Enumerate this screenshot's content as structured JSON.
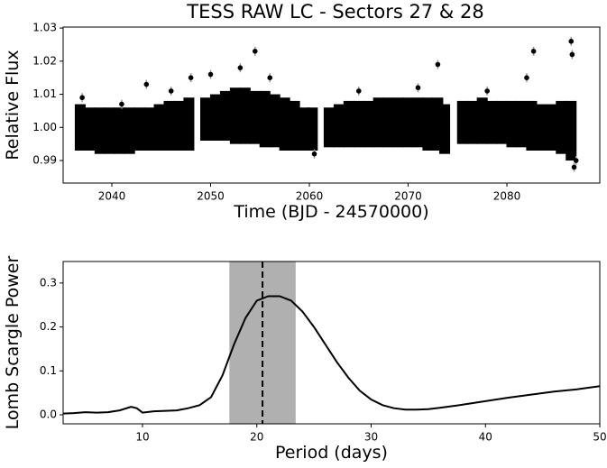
{
  "chart_data": [
    {
      "type": "scatter",
      "title": "TESS RAW LC - Sectors 27 & 28",
      "xlabel": "Time (BJD - 24570000)",
      "ylabel": "Relative Flux",
      "xlim": [
        2035.07,
        2089.4
      ],
      "ylim": [
        0.9832,
        1.0303
      ],
      "xticks": [
        2040,
        2050,
        2060,
        2070,
        2080
      ],
      "yticks": [
        0.99,
        {
          "value": 1,
          "label": "1.00"
        },
        1.01,
        1.02,
        1.03
      ],
      "color": "#000000",
      "errcolor": "#999999",
      "band": {
        "x": [
          2036.8,
          2037.8,
          2038.8,
          2039.8,
          2040.8,
          2041.8,
          2042.8,
          2043.8,
          2044.8,
          2045.8,
          2046.8,
          2047.8,
          2049.5,
          2050.5,
          2051.5,
          2052.5,
          2053.5,
          2054.5,
          2055.5,
          2056.5,
          2057.5,
          2058.5,
          2059.5,
          2060.3,
          2062,
          2063,
          2064,
          2065,
          2066,
          2067,
          2068,
          2069,
          2070,
          2071,
          2072,
          2073,
          2073.7,
          2075.5,
          2076.5,
          2077.5,
          2078.5,
          2079.5,
          2080.5,
          2081.5,
          2082.5,
          2083.5,
          2084.5,
          2085.5,
          2086.5
        ],
        "lower": [
          0.993,
          0.993,
          0.992,
          0.992,
          0.992,
          0.992,
          0.993,
          0.993,
          0.993,
          0.993,
          0.993,
          0.993,
          0.996,
          0.996,
          0.996,
          0.995,
          0.995,
          0.995,
          0.994,
          0.994,
          0.993,
          0.993,
          0.993,
          0.993,
          0.994,
          0.994,
          0.994,
          0.994,
          0.994,
          0.994,
          0.994,
          0.994,
          0.994,
          0.994,
          0.993,
          0.993,
          0.992,
          0.995,
          0.995,
          0.995,
          0.995,
          0.995,
          0.994,
          0.994,
          0.993,
          0.993,
          0.993,
          0.992,
          0.99
        ],
        "upper": [
          1.007,
          1.006,
          1.006,
          1.006,
          1.006,
          1.006,
          1.006,
          1.006,
          1.007,
          1.008,
          1.008,
          1.009,
          1.009,
          1.01,
          1.011,
          1.012,
          1.012,
          1.011,
          1.011,
          1.01,
          1.009,
          1.008,
          1.006,
          1.006,
          1.006,
          1.007,
          1.008,
          1.008,
          1.008,
          1.009,
          1.009,
          1.009,
          1.009,
          1.009,
          1.009,
          1.009,
          1.007,
          1.008,
          1.008,
          1.009,
          1.008,
          1.008,
          1.008,
          1.008,
          1.008,
          1.007,
          1.007,
          1.008,
          1.008
        ]
      },
      "points": {
        "x": [
          2037,
          2041,
          2043.5,
          2046,
          2048,
          2050,
          2053,
          2054.5,
          2056,
          2060.5,
          2065,
          2071,
          2073,
          2078,
          2082,
          2082.7,
          2086.5,
          2086.6,
          2086.8,
          2087
        ],
        "y": [
          1.009,
          1.007,
          1.013,
          1.011,
          1.015,
          1.016,
          1.018,
          1.023,
          1.015,
          0.992,
          1.011,
          1.012,
          1.019,
          1.011,
          1.015,
          1.023,
          1.026,
          1.022,
          0.988,
          0.99
        ]
      }
    },
    {
      "type": "line",
      "xlabel": "Period (days)",
      "ylabel": "Lomb Scargle Power",
      "xlim": [
        3.06,
        50
      ],
      "ylim": [
        -0.0205,
        0.349
      ],
      "xticks": [
        10,
        20,
        30,
        40,
        50
      ],
      "yticks": [
        {
          "value": 0,
          "label": "0.0"
        },
        0.1,
        0.2,
        0.3
      ],
      "color": "#000000",
      "span": [
        17.6,
        23.4
      ],
      "span_color": "#b0b0b0",
      "vline": 20.5,
      "x": [
        3.06,
        4,
        5,
        6,
        7,
        8,
        9,
        9.5,
        10,
        11,
        12,
        13,
        14,
        15,
        16,
        17,
        18,
        19,
        20,
        21,
        22,
        23,
        24,
        25,
        26,
        27,
        28,
        29,
        30,
        31,
        32,
        33,
        34,
        35,
        36,
        38,
        40,
        42,
        44,
        46,
        48,
        50
      ],
      "values": [
        0.003,
        0.004,
        0.006,
        0.005,
        0.006,
        0.01,
        0.018,
        0.015,
        0.005,
        0.008,
        0.009,
        0.01,
        0.015,
        0.022,
        0.04,
        0.09,
        0.16,
        0.22,
        0.26,
        0.27,
        0.27,
        0.26,
        0.235,
        0.2,
        0.16,
        0.12,
        0.085,
        0.055,
        0.035,
        0.022,
        0.015,
        0.012,
        0.012,
        0.013,
        0.016,
        0.023,
        0.031,
        0.039,
        0.046,
        0.053,
        0.058,
        0.065
      ]
    }
  ]
}
